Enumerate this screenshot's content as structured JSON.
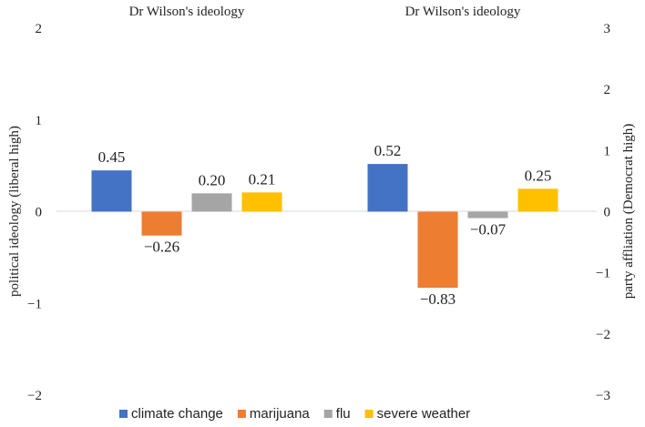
{
  "chart_data": {
    "type": "bar",
    "panels": [
      {
        "title": "Dr Wilson's ideology",
        "series": [
          {
            "name": "climate change",
            "value": 0.45,
            "label": "0.45"
          },
          {
            "name": "marijuana",
            "value": -0.26,
            "label": "−0.26"
          },
          {
            "name": "flu",
            "value": 0.2,
            "label": "0.20"
          },
          {
            "name": "severe weather",
            "value": 0.21,
            "label": "0.21"
          }
        ]
      },
      {
        "title": "Dr Wilson's ideology",
        "series": [
          {
            "name": "climate change",
            "value": 0.52,
            "label": "0.52"
          },
          {
            "name": "marijuana",
            "value": -0.83,
            "label": "−0.83"
          },
          {
            "name": "flu",
            "value": -0.07,
            "label": "−0.07"
          },
          {
            "name": "severe weather",
            "value": 0.25,
            "label": "0.25"
          }
        ]
      }
    ],
    "y_left": {
      "label": "political ideology (liberal high)",
      "ylim": [
        -2,
        2
      ],
      "ticks": [
        "−2",
        "−1",
        "0",
        "1",
        "2"
      ]
    },
    "y_right": {
      "label": "party affliation (Democrat high)",
      "ylim": [
        -3,
        3
      ],
      "ticks": [
        "−3",
        "−2",
        "−1",
        "0",
        "1",
        "2",
        "3"
      ]
    },
    "legend": {
      "position": "bottom",
      "items": [
        {
          "name": "climate change",
          "color": "#4472C4"
        },
        {
          "name": "marijuana",
          "color": "#ED7D31"
        },
        {
          "name": "flu",
          "color": "#A5A5A5"
        },
        {
          "name": "severe weather",
          "color": "#FFC000"
        }
      ]
    },
    "grid": false
  }
}
